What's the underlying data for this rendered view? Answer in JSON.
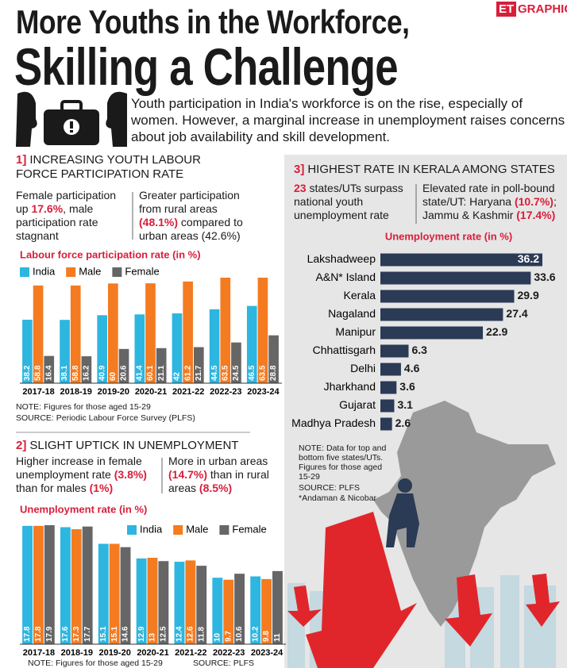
{
  "brand": {
    "badge": "ET",
    "label": "GRAPHIC"
  },
  "title": "More Youths in the Workforce,",
  "subtitle": "Skilling a Challenge",
  "intro": "Youth participation in India's workforce is on the rise, especially of women. However, a marginal increase in unemployment raises concerns about job availability and skill development.",
  "chart_data": [
    {
      "type": "bar",
      "number": "1]",
      "title": "INCREASING YOUTH LABOUR FORCE PARTICIPATION RATE",
      "callouts": [
        {
          "parts": [
            {
              "text": "Female participation up "
            },
            {
              "text": "17.6%",
              "color": "#d81e3a"
            },
            {
              "text": ", male participation rate stagnant"
            }
          ]
        },
        {
          "parts": [
            {
              "text": "Greater participation from rural areas "
            },
            {
              "text": "(48.1%)",
              "color": "#d81e3a"
            },
            {
              "text": " compared to urban areas (42.6%)"
            }
          ]
        }
      ],
      "chart_title": "Labour force participation rate (in %)",
      "categories": [
        "2017-18",
        "2018-19",
        "2019-20",
        "2020-21",
        "2021-22",
        "2022-23",
        "2023-24"
      ],
      "series": [
        {
          "name": "India",
          "color": "#2db6e0",
          "values": [
            38.2,
            38.1,
            40.9,
            41.4,
            42,
            44.5,
            46.5
          ]
        },
        {
          "name": "Male",
          "color": "#f47b20",
          "values": [
            58.8,
            58.8,
            60,
            60.1,
            61.2,
            63.5,
            63.5
          ]
        },
        {
          "name": "Female",
          "color": "#666666",
          "values": [
            16.4,
            16.2,
            20.6,
            21.1,
            21.7,
            24.5,
            28.8
          ]
        }
      ],
      "notes": [
        "NOTE: Figures for those aged 15-29",
        "SOURCE: Periodic Labour Force Survey (PLFS)"
      ]
    },
    {
      "type": "bar",
      "number": "2]",
      "title": "SLIGHT UPTICK IN UNEMPLOYMENT",
      "callouts": [
        {
          "parts": [
            {
              "text": "Higher increase in female unemployment rate "
            },
            {
              "text": "(3.8%)",
              "color": "#d81e3a"
            },
            {
              "text": " than for males "
            },
            {
              "text": "(1%)",
              "color": "#d81e3a"
            }
          ]
        },
        {
          "parts": [
            {
              "text": "More in urban areas "
            },
            {
              "text": "(14.7%)",
              "color": "#d81e3a"
            },
            {
              "text": " than in rural areas "
            },
            {
              "text": "(8.5%)",
              "color": "#d81e3a"
            }
          ]
        }
      ],
      "chart_title": "Unemployment rate (in %)",
      "categories": [
        "2017-18",
        "2018-19",
        "2019-20",
        "2020-21",
        "2021-22",
        "2022-23",
        "2023-24"
      ],
      "series": [
        {
          "name": "India",
          "color": "#2db6e0",
          "values": [
            17.8,
            17.6,
            15.1,
            12.9,
            12.4,
            10,
            10.2
          ]
        },
        {
          "name": "Male",
          "color": "#f47b20",
          "values": [
            17.8,
            17.3,
            15.1,
            13,
            12.6,
            9.7,
            9.8
          ]
        },
        {
          "name": "Female",
          "color": "#666666",
          "values": [
            17.9,
            17.7,
            14.6,
            12.5,
            11.8,
            10.6,
            11
          ]
        }
      ],
      "notes": [
        "NOTE: Figures for those aged 15-29",
        "SOURCE: PLFS"
      ]
    },
    {
      "type": "barh",
      "number": "3]",
      "title": "HIGHEST RATE IN KERALA AMONG STATES",
      "callouts": [
        {
          "parts": [
            {
              "text": "23",
              "color": "#d81e3a"
            },
            {
              "text": " states/UTs surpass national youth unemployment rate"
            }
          ]
        },
        {
          "parts": [
            {
              "text": "Elevated rate in poll-bound state/UT: Haryana "
            },
            {
              "text": "(10.7%)",
              "color": "#d81e3a"
            },
            {
              "text": "; Jammu & Kashmir "
            },
            {
              "text": "(17.4%)",
              "color": "#d81e3a"
            }
          ]
        }
      ],
      "chart_title": "Unemployment rate (in %)",
      "categories": [
        "Lakshadweep",
        "A&N* Island",
        "Kerala",
        "Nagaland",
        "Manipur",
        "Chhattisgarh",
        "Delhi",
        "Jharkhand",
        "Gujarat",
        "Madhya Pradesh"
      ],
      "values": [
        36.2,
        33.6,
        29.9,
        27.4,
        22.9,
        6.3,
        4.6,
        3.6,
        3.1,
        2.6
      ],
      "color": "#2b3a55",
      "notes": [
        "NOTE: Data for top and bottom five states/UTs. Figures for those aged 15-29",
        "SOURCE: PLFS",
        "*Andaman & Nicobar"
      ]
    }
  ]
}
